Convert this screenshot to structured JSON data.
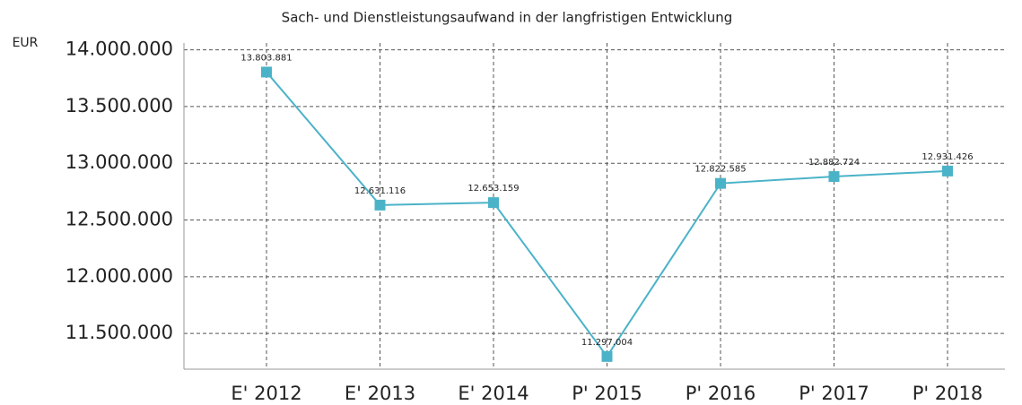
{
  "chart_data": {
    "type": "line",
    "title": "Sach- und Dienstleistungsaufwand in der langfristigen Entwicklung",
    "ylabel": "EUR",
    "categories": [
      "E' 2012",
      "E' 2013",
      "E' 2014",
      "P' 2015",
      "P' 2016",
      "P' 2017",
      "P' 2018"
    ],
    "series": [
      {
        "name": "Sach- und Dienstleistungsaufwand",
        "color": "#4bb3c8",
        "values": [
          13803881,
          12631116,
          12653159,
          11297004,
          12822585,
          12882724,
          12931426
        ],
        "value_labels": [
          "13.803.881",
          "12.631.116",
          "12.653.159",
          "11.297.004",
          "12.822.585",
          "12.882.724",
          "12.931.426"
        ]
      }
    ],
    "ylim": [
      11185000,
      14060000
    ],
    "yticks": [
      {
        "value": 11500000,
        "label": "11.500.000"
      },
      {
        "value": 12000000,
        "label": "12.000.000"
      },
      {
        "value": 12500000,
        "label": "12.500.000"
      },
      {
        "value": 13000000,
        "label": "13.000.000"
      },
      {
        "value": 13500000,
        "label": "13.500.000"
      },
      {
        "value": 14000000,
        "label": "14.000.000"
      }
    ],
    "grid": true
  }
}
